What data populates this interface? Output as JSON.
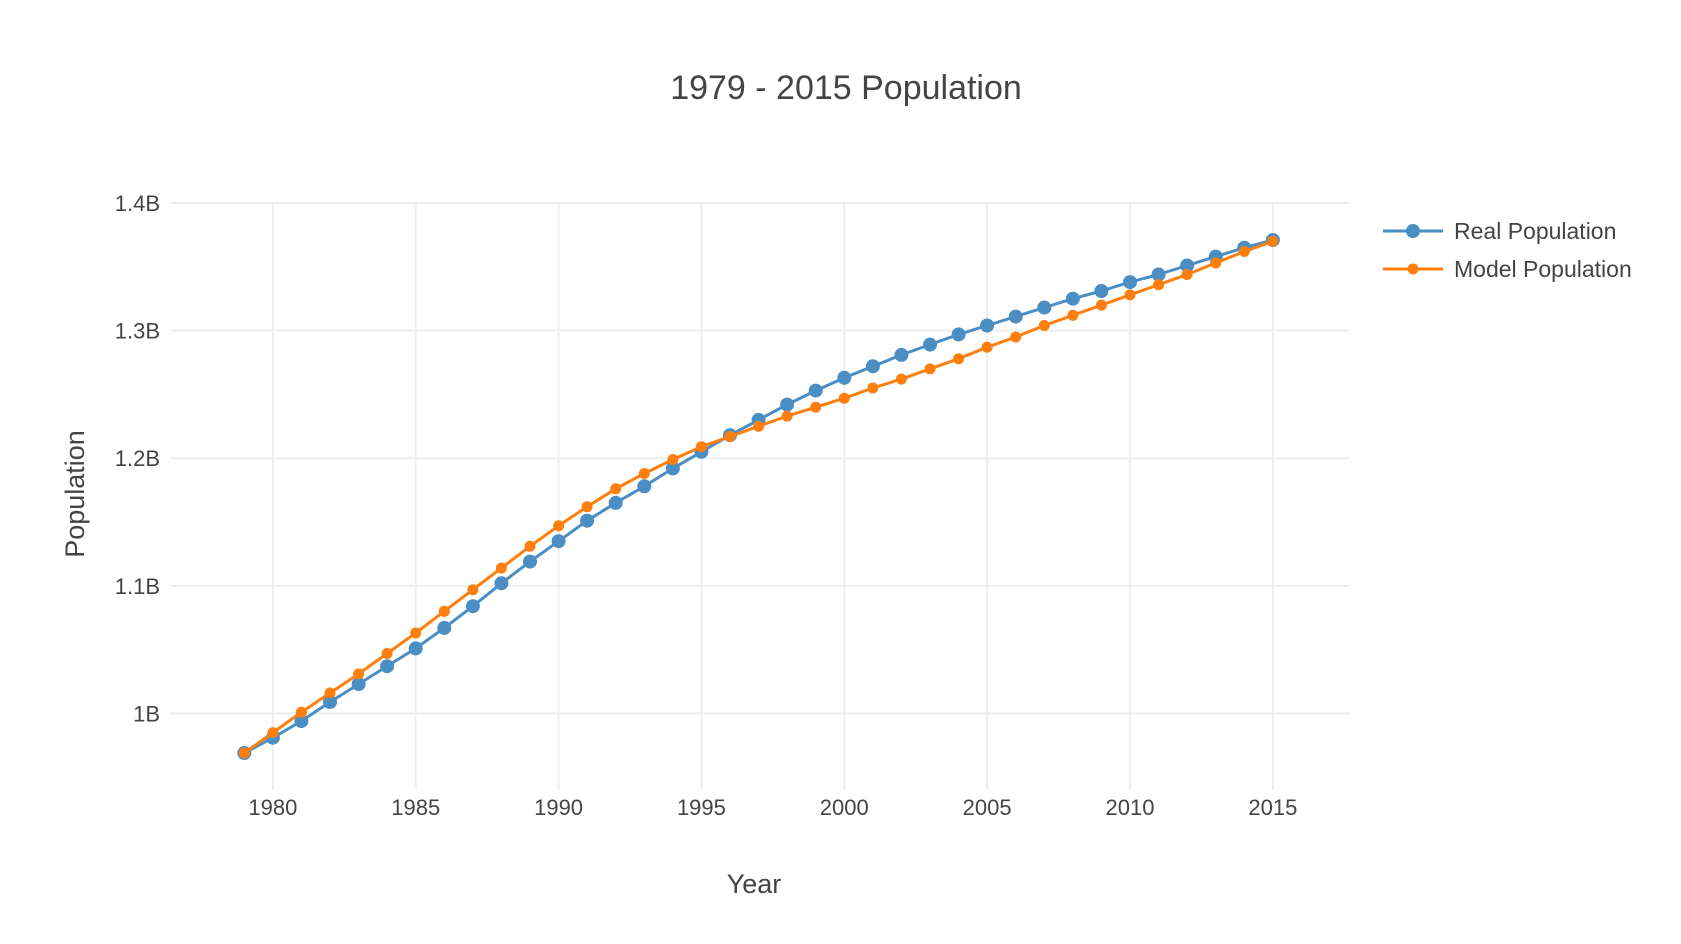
{
  "chart_data": {
    "type": "line",
    "title": "1979 - 2015 Population",
    "xlabel": "Year",
    "ylabel": "Population",
    "xlim": [
      1976.4,
      2017.7
    ],
    "ylim": [
      0.94,
      1.4
    ],
    "grid": true,
    "legend_position": "top-right",
    "x_ticks": [
      {
        "value": 1980,
        "label": "1980"
      },
      {
        "value": 1985,
        "label": "1985"
      },
      {
        "value": 1990,
        "label": "1990"
      },
      {
        "value": 1995,
        "label": "1995"
      },
      {
        "value": 2000,
        "label": "2000"
      },
      {
        "value": 2005,
        "label": "2005"
      },
      {
        "value": 2010,
        "label": "2010"
      },
      {
        "value": 2015,
        "label": "2015"
      }
    ],
    "y_ticks": [
      {
        "value": 1.0,
        "label": "1B"
      },
      {
        "value": 1.1,
        "label": "1.1B"
      },
      {
        "value": 1.2,
        "label": "1.2B"
      },
      {
        "value": 1.3,
        "label": "1.3B"
      },
      {
        "value": 1.4,
        "label": "1.4B"
      }
    ],
    "y_unit_note": "values in billions",
    "x": [
      1979,
      1980,
      1981,
      1982,
      1983,
      1984,
      1985,
      1986,
      1987,
      1988,
      1989,
      1990,
      1991,
      1992,
      1993,
      1994,
      1995,
      1996,
      1997,
      1998,
      1999,
      2000,
      2001,
      2002,
      2003,
      2004,
      2005,
      2006,
      2007,
      2008,
      2009,
      2010,
      2011,
      2012,
      2013,
      2014,
      2015
    ],
    "series": [
      {
        "name": "Real Population",
        "color": "#4a8ec4",
        "marker_size": "large",
        "values": [
          0.969,
          0.981,
          0.994,
          1.009,
          1.023,
          1.037,
          1.051,
          1.067,
          1.084,
          1.102,
          1.119,
          1.135,
          1.151,
          1.165,
          1.178,
          1.192,
          1.205,
          1.218,
          1.23,
          1.242,
          1.253,
          1.263,
          1.272,
          1.281,
          1.289,
          1.297,
          1.304,
          1.311,
          1.318,
          1.325,
          1.331,
          1.338,
          1.344,
          1.351,
          1.358,
          1.365,
          1.371
        ]
      },
      {
        "name": "Model Population",
        "color": "#ff7f0e",
        "marker_size": "small",
        "values": [
          0.969,
          0.985,
          1.001,
          1.016,
          1.031,
          1.047,
          1.063,
          1.08,
          1.097,
          1.114,
          1.131,
          1.147,
          1.162,
          1.176,
          1.188,
          1.199,
          1.209,
          1.217,
          1.225,
          1.233,
          1.24,
          1.247,
          1.255,
          1.262,
          1.27,
          1.278,
          1.287,
          1.295,
          1.304,
          1.312,
          1.32,
          1.328,
          1.336,
          1.344,
          1.353,
          1.362,
          1.37
        ]
      }
    ]
  }
}
